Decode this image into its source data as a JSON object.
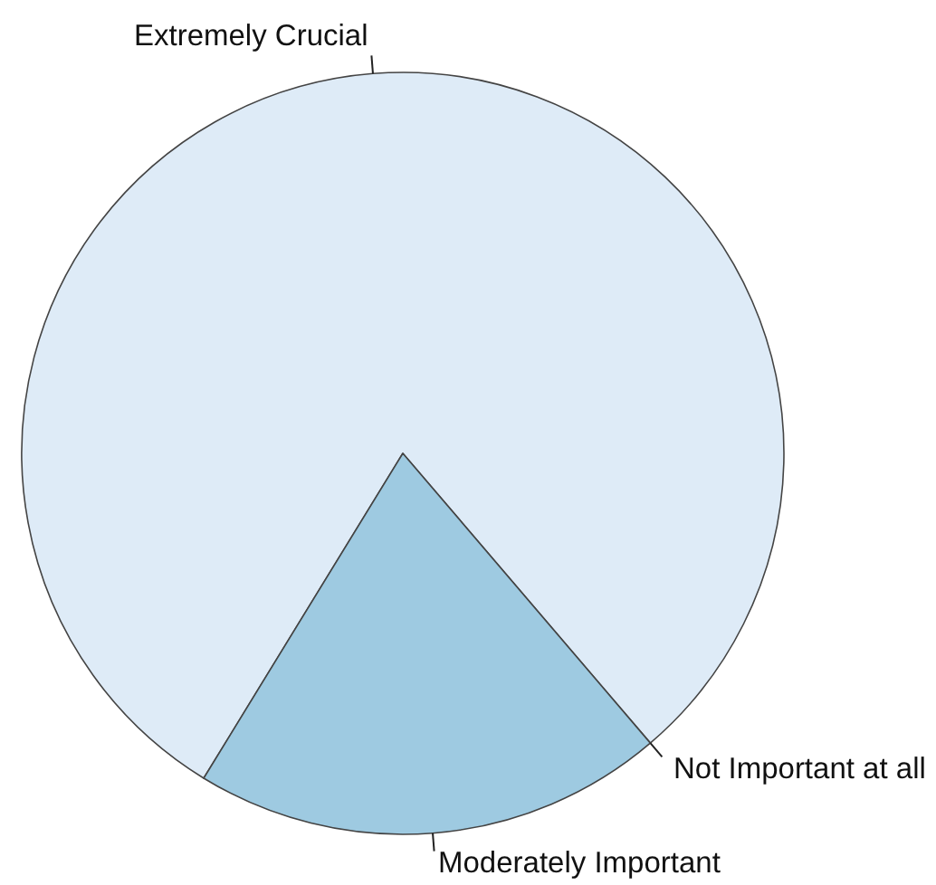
{
  "chart_data": {
    "type": "pie",
    "categories": [
      "Extremely Crucial",
      "Moderately Important",
      "Not Important at all"
    ],
    "values": [
      80,
      20,
      0
    ],
    "colors": [
      "#deebf7",
      "#9ecae1",
      "#3182bd"
    ]
  }
}
